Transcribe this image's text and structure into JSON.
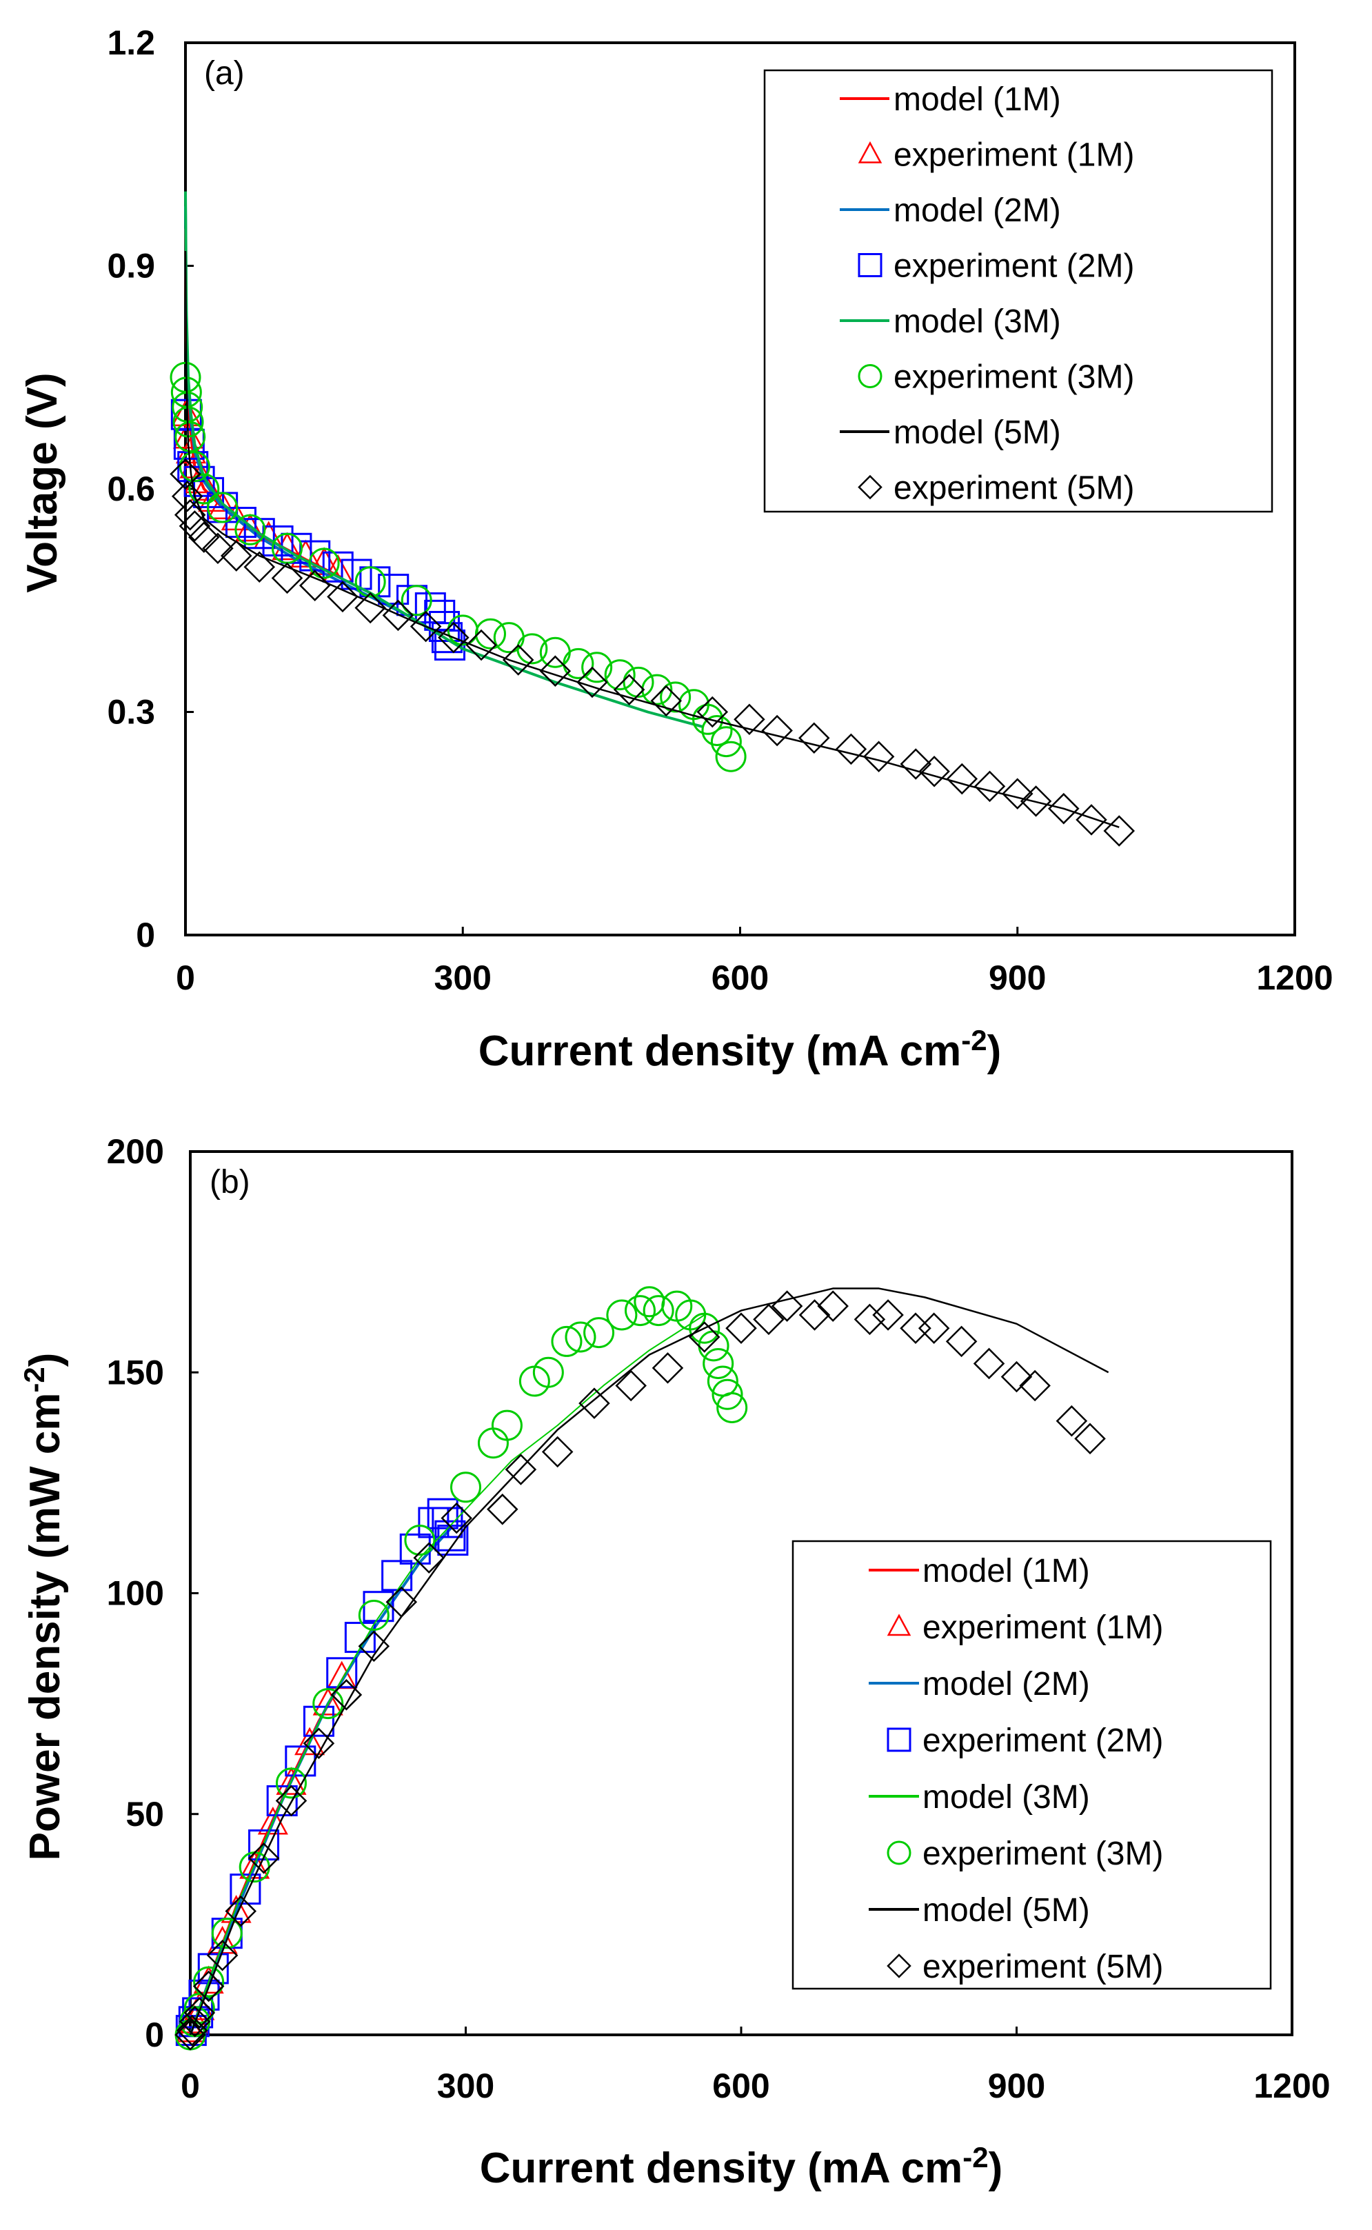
{
  "chart_data": [
    {
      "type": "scatter",
      "panel": "(a)",
      "title": "",
      "xlabel": "Current density (mA cm",
      "xlabel_sup": "-2",
      "xlabel_end": ")",
      "ylabel": "Voltage (V)",
      "xlim": [
        0,
        1200
      ],
      "ylim": [
        0,
        1.2
      ],
      "xticks": [
        0,
        300,
        600,
        900,
        1200
      ],
      "yticks": [
        0,
        0.3,
        0.6,
        0.9,
        1.2
      ],
      "xtick_labels": [
        "0",
        "300",
        "600",
        "900",
        "1200"
      ],
      "ytick_labels": [
        "0",
        "0.3",
        "0.6",
        "0.9",
        "1.2"
      ],
      "legend_position": "top-right",
      "legend": [
        {
          "label": "model (1M)",
          "kind": "line",
          "color": "#ff0000"
        },
        {
          "label": "experiment (1M)",
          "kind": "triangle",
          "color": "#ff0000"
        },
        {
          "label": "model (2M)",
          "kind": "line",
          "color": "#0070c0"
        },
        {
          "label": "experiment (2M)",
          "kind": "square",
          "color": "#0000ff"
        },
        {
          "label": "model (3M)",
          "kind": "line",
          "color": "#00b050"
        },
        {
          "label": "experiment (3M)",
          "kind": "circle",
          "color": "#00cc00"
        },
        {
          "label": "model (5M)",
          "kind": "line",
          "color": "#000000"
        },
        {
          "label": "experiment (5M)",
          "kind": "diamond",
          "color": "#000000"
        }
      ],
      "series": [
        {
          "name": "model (1M)",
          "kind": "line",
          "color": "#ff0000",
          "width": 4,
          "x": [
            0,
            1,
            3,
            6,
            10,
            20,
            40,
            70,
            100,
            130,
            170
          ],
          "y": [
            0.95,
            0.8,
            0.72,
            0.67,
            0.63,
            0.6,
            0.575,
            0.545,
            0.525,
            0.505,
            0.48
          ]
        },
        {
          "name": "experiment (1M)",
          "kind": "triangle",
          "color": "#ff0000",
          "x": [
            1,
            3,
            6,
            10,
            15,
            22,
            30,
            40,
            55,
            70,
            90,
            110,
            130,
            150,
            165
          ],
          "y": [
            0.7,
            0.67,
            0.65,
            0.63,
            0.61,
            0.6,
            0.585,
            0.575,
            0.56,
            0.545,
            0.535,
            0.52,
            0.51,
            0.5,
            0.49
          ]
        },
        {
          "name": "model (2M)",
          "kind": "line",
          "color": "#0070c0",
          "width": 4,
          "x": [
            0,
            1,
            3,
            6,
            10,
            20,
            40,
            80,
            120,
            160,
            200,
            240,
            280
          ],
          "y": [
            0.98,
            0.82,
            0.74,
            0.69,
            0.65,
            0.61,
            0.575,
            0.535,
            0.505,
            0.48,
            0.455,
            0.43,
            0.4
          ]
        },
        {
          "name": "experiment (2M)",
          "kind": "square",
          "color": "#0000ff",
          "x": [
            1,
            4,
            8,
            15,
            25,
            40,
            60,
            80,
            100,
            120,
            140,
            165,
            185,
            205,
            225,
            245,
            265,
            275,
            280,
            283,
            286
          ],
          "y": [
            0.7,
            0.66,
            0.63,
            0.61,
            0.595,
            0.575,
            0.555,
            0.54,
            0.53,
            0.52,
            0.51,
            0.495,
            0.485,
            0.475,
            0.465,
            0.45,
            0.44,
            0.43,
            0.415,
            0.4,
            0.39
          ]
        },
        {
          "name": "model (3M)",
          "kind": "line",
          "color": "#00b050",
          "width": 4,
          "x": [
            0,
            1,
            3,
            6,
            10,
            20,
            40,
            80,
            120,
            200,
            300,
            400,
            500,
            560
          ],
          "y": [
            1.0,
            0.84,
            0.75,
            0.7,
            0.66,
            0.615,
            0.58,
            0.54,
            0.51,
            0.46,
            0.385,
            0.34,
            0.3,
            0.28
          ]
        },
        {
          "name": "experiment (3M)",
          "kind": "circle",
          "color": "#00cc00",
          "x": [
            0,
            1,
            2,
            3,
            5,
            10,
            20,
            40,
            70,
            110,
            150,
            200,
            250,
            300,
            330,
            350,
            375,
            400,
            425,
            445,
            470,
            490,
            510,
            530,
            550,
            565,
            575,
            585,
            590
          ],
          "y": [
            0.75,
            0.73,
            0.71,
            0.69,
            0.67,
            0.63,
            0.6,
            0.575,
            0.545,
            0.52,
            0.5,
            0.475,
            0.45,
            0.41,
            0.405,
            0.4,
            0.385,
            0.38,
            0.365,
            0.36,
            0.35,
            0.34,
            0.33,
            0.32,
            0.31,
            0.29,
            0.275,
            0.26,
            0.24
          ]
        },
        {
          "name": "model (5M)",
          "kind": "line",
          "color": "#000000",
          "width": 2.5,
          "x": [
            0,
            1,
            3,
            6,
            10,
            20,
            40,
            80,
            150,
            250,
            350,
            450,
            550,
            650,
            750,
            850,
            950,
            1010
          ],
          "y": [
            0.92,
            0.75,
            0.66,
            0.62,
            0.59,
            0.56,
            0.54,
            0.51,
            0.475,
            0.42,
            0.37,
            0.33,
            0.295,
            0.265,
            0.235,
            0.2,
            0.17,
            0.145
          ]
        },
        {
          "name": "experiment (5M)",
          "kind": "diamond",
          "color": "#000000",
          "x": [
            0,
            2,
            5,
            10,
            20,
            35,
            55,
            80,
            110,
            140,
            170,
            200,
            230,
            260,
            290,
            320,
            360,
            400,
            440,
            480,
            520,
            570,
            610,
            640,
            680,
            720,
            750,
            790,
            810,
            840,
            870,
            900,
            920,
            950,
            980,
            1010
          ],
          "y": [
            0.62,
            0.59,
            0.565,
            0.55,
            0.535,
            0.52,
            0.51,
            0.495,
            0.48,
            0.47,
            0.455,
            0.44,
            0.43,
            0.415,
            0.4,
            0.39,
            0.37,
            0.355,
            0.34,
            0.33,
            0.315,
            0.3,
            0.29,
            0.275,
            0.265,
            0.25,
            0.24,
            0.23,
            0.22,
            0.21,
            0.2,
            0.19,
            0.18,
            0.17,
            0.155,
            0.14
          ]
        }
      ]
    },
    {
      "type": "scatter",
      "panel": "(b)",
      "title": "",
      "xlabel": "Current density (mA cm",
      "xlabel_sup": "-2",
      "xlabel_end": ")",
      "ylabel": "Power density (mW cm",
      "ylabel_sup": "-2",
      "ylabel_end": ")",
      "xlim": [
        0,
        1200
      ],
      "ylim": [
        0,
        200
      ],
      "xticks": [
        0,
        300,
        600,
        900,
        1200
      ],
      "yticks": [
        0,
        50,
        100,
        150,
        200
      ],
      "xtick_labels": [
        "0",
        "300",
        "600",
        "900",
        "1200"
      ],
      "ytick_labels": [
        "0",
        "50",
        "100",
        "150",
        "200"
      ],
      "legend_position": "bottom-right",
      "legend": [
        {
          "label": "model (1M)",
          "kind": "line",
          "color": "#ff0000"
        },
        {
          "label": "experiment (1M)",
          "kind": "triangle",
          "color": "#ff0000"
        },
        {
          "label": "model (2M)",
          "kind": "line",
          "color": "#0070c0"
        },
        {
          "label": "experiment (2M)",
          "kind": "square",
          "color": "#0000ff"
        },
        {
          "label": "model (3M)",
          "kind": "line",
          "color": "#00cc00"
        },
        {
          "label": "experiment (3M)",
          "kind": "circle",
          "color": "#00cc00"
        },
        {
          "label": "model (5M)",
          "kind": "line",
          "color": "#000000"
        },
        {
          "label": "experiment (5M)",
          "kind": "diamond",
          "color": "#000000"
        }
      ],
      "series": [
        {
          "name": "model (1M)",
          "kind": "line",
          "color": "#ff0000",
          "width": 4,
          "x": [
            0,
            20,
            50,
            80,
            110,
            140,
            170
          ],
          "y": [
            0,
            12,
            29,
            44,
            58,
            71,
            82
          ]
        },
        {
          "name": "experiment (1M)",
          "kind": "triangle",
          "color": "#ff0000",
          "x": [
            1,
            5,
            10,
            20,
            35,
            50,
            70,
            90,
            110,
            130,
            150,
            165
          ],
          "y": [
            1,
            3,
            6,
            12,
            21,
            28,
            38,
            48,
            57,
            66,
            75,
            81
          ]
        },
        {
          "name": "model (2M)",
          "kind": "line",
          "color": "#0070c0",
          "width": 4,
          "x": [
            0,
            20,
            50,
            100,
            150,
            200,
            250,
            285
          ],
          "y": [
            0,
            12,
            28,
            53,
            75,
            92,
            107,
            115
          ]
        },
        {
          "name": "experiment (2M)",
          "kind": "square",
          "color": "#0000ff",
          "x": [
            1,
            4,
            8,
            15,
            25,
            40,
            60,
            80,
            100,
            120,
            140,
            165,
            185,
            205,
            225,
            245,
            265,
            275,
            280,
            283,
            286
          ],
          "y": [
            1,
            3,
            5,
            9,
            15,
            23,
            33,
            43,
            53,
            62,
            71,
            82,
            90,
            97,
            104,
            110,
            116,
            118,
            116,
            113,
            112
          ]
        },
        {
          "name": "model (3M)",
          "kind": "line",
          "color": "#00cc00",
          "width": 2,
          "x": [
            0,
            20,
            50,
            100,
            150,
            200,
            250,
            300,
            350,
            400,
            450,
            500,
            560
          ],
          "y": [
            0,
            12,
            29,
            53,
            75,
            93,
            108,
            119,
            130,
            138,
            147,
            155,
            163
          ]
        },
        {
          "name": "experiment (3M)",
          "kind": "circle",
          "color": "#00cc00",
          "x": [
            0,
            5,
            10,
            20,
            40,
            70,
            110,
            150,
            200,
            250,
            300,
            330,
            345,
            375,
            390,
            410,
            425,
            445,
            470,
            490,
            500,
            510,
            530,
            545,
            560,
            570,
            575,
            580,
            585,
            590
          ],
          "y": [
            0,
            3,
            6,
            12,
            23,
            38,
            57,
            75,
            95,
            112,
            124,
            134,
            138,
            148,
            150,
            157,
            158,
            159,
            163,
            164,
            166,
            164,
            165,
            163,
            160,
            156,
            152,
            148,
            145,
            142
          ]
        },
        {
          "name": "model (5M)",
          "kind": "line",
          "color": "#000000",
          "width": 2.5,
          "x": [
            0,
            50,
            100,
            200,
            300,
            400,
            500,
            600,
            700,
            750,
            800,
            900,
            1000
          ],
          "y": [
            0,
            27,
            49,
            86,
            115,
            137,
            154,
            164,
            169,
            169,
            167,
            161,
            150
          ]
        },
        {
          "name": "experiment (5M)",
          "kind": "diamond",
          "color": "#000000",
          "x": [
            0,
            2,
            5,
            10,
            20,
            35,
            55,
            80,
            110,
            140,
            170,
            200,
            230,
            260,
            290,
            340,
            360,
            400,
            440,
            480,
            520,
            560,
            600,
            630,
            650,
            680,
            700,
            740,
            760,
            790,
            810,
            840,
            870,
            900,
            920,
            960,
            980
          ],
          "y": [
            0,
            1,
            3,
            5,
            11,
            18,
            28,
            40,
            53,
            66,
            77,
            88,
            98,
            108,
            117,
            119,
            128,
            132,
            143,
            147,
            151,
            158,
            160,
            162,
            165,
            163,
            165,
            162,
            163,
            160,
            160,
            157,
            152,
            149,
            147,
            139,
            135
          ]
        }
      ]
    }
  ]
}
